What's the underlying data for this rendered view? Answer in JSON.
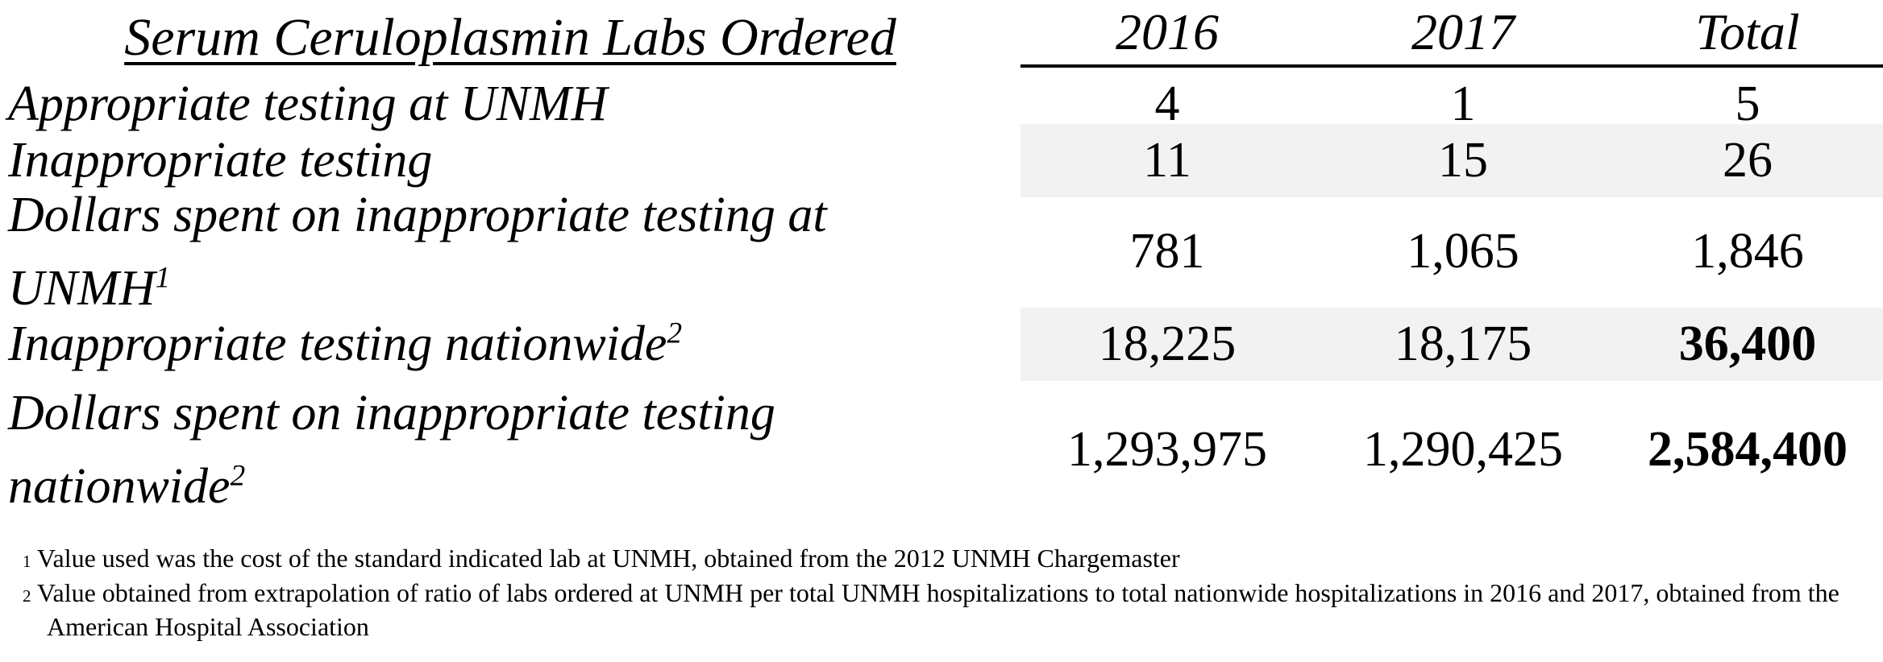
{
  "table": {
    "title": "Serum Ceruloplasmin Labs Ordered",
    "columns": [
      "2016",
      "2017",
      "Total"
    ],
    "rows": [
      {
        "lines": [
          "Appropriate testing at UNMH"
        ],
        "sup": "",
        "values": [
          "4",
          "1",
          "5"
        ],
        "shaded": false
      },
      {
        "lines": [
          "Inappropriate testing"
        ],
        "sup": "",
        "values": [
          "11",
          "15",
          "26"
        ],
        "shaded": true
      },
      {
        "lines": [
          "Dollars spent on inappropriate testing at",
          "UNMH"
        ],
        "sup": "1",
        "values": [
          "781",
          "1,065",
          "1,846"
        ],
        "shaded": false
      },
      {
        "lines": [
          "Inappropriate testing nationwide"
        ],
        "sup": "2",
        "values": [
          "18,225",
          "18,175",
          "36,400"
        ],
        "shaded": true
      },
      {
        "lines": [
          "Dollars spent on inappropriate testing",
          "nationwide"
        ],
        "sup": "2",
        "values": [
          "1,293,975",
          "1,290,425",
          "2,584,400"
        ],
        "shaded": false
      }
    ]
  },
  "footnotes": [
    {
      "marker": "1",
      "text": "Value used was the cost of the standard indicated lab at UNMH, obtained from the 2012 UNMH Chargemaster"
    },
    {
      "marker": "2",
      "text": "Value obtained from extrapolation of ratio of labs ordered at UNMH per total UNMH hospitalizations to total nationwide hospitalizations in 2016 and 2017, obtained from the American Hospital Association"
    }
  ],
  "colors": {
    "row_shading": "#f2f2f2",
    "rule": "#000000",
    "text": "#000000"
  },
  "chart_data": {
    "type": "table",
    "title": "Serum Ceruloplasmin Labs Ordered",
    "columns": [
      "2016",
      "2017",
      "Total"
    ],
    "rows": [
      {
        "label": "Appropriate testing at UNMH",
        "values": [
          4,
          1,
          5
        ]
      },
      {
        "label": "Inappropriate testing",
        "values": [
          11,
          15,
          26
        ]
      },
      {
        "label": "Dollars spent on inappropriate testing at UNMH [1]",
        "values": [
          781,
          1065,
          1846
        ]
      },
      {
        "label": "Inappropriate testing nationwide [2]",
        "values": [
          18225,
          18175,
          36400
        ]
      },
      {
        "label": "Dollars spent on inappropriate testing nationwide [2]",
        "values": [
          1293975,
          1290425,
          2584400
        ]
      }
    ],
    "notes": [
      "Value used was the cost of the standard indicated lab at UNMH, obtained from the 2012 UNMH Chargemaster",
      "Value obtained from extrapolation of ratio of labs ordered at UNMH per total UNMH hospitalizations to total nationwide hospitalizations in 2016 and 2017, obtained from the American Hospital Association"
    ]
  }
}
